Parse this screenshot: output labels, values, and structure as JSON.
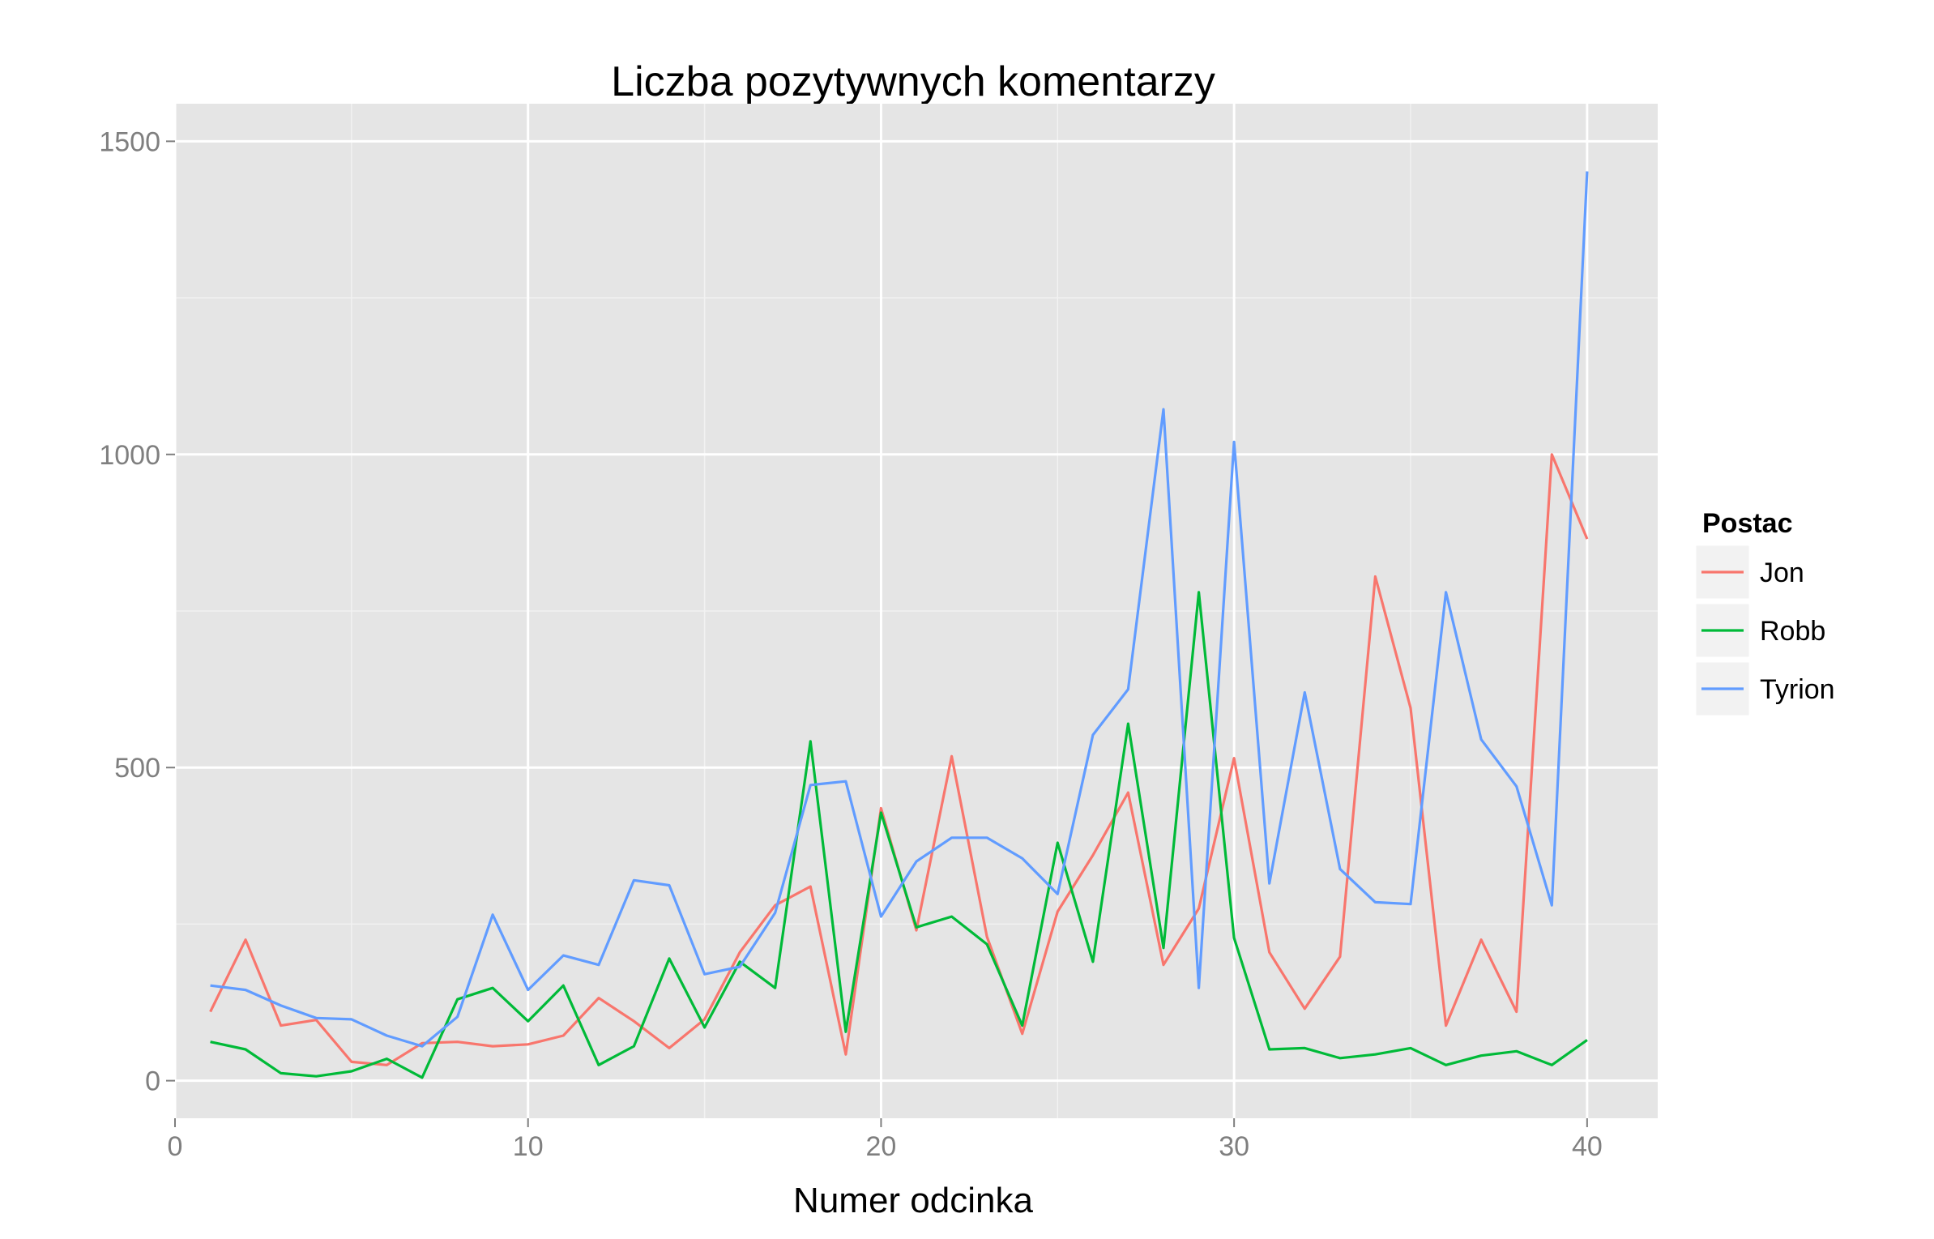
{
  "chart_data": {
    "type": "line",
    "title": "Liczba pozytywnych komentarzy",
    "xlabel": "Numer odcinka",
    "ylabel": "",
    "xlim": [
      0,
      42
    ],
    "ylim": [
      -60,
      1560
    ],
    "x_ticks": [
      0,
      10,
      20,
      30,
      40
    ],
    "y_ticks": [
      0,
      500,
      1000,
      1500
    ],
    "grid": true,
    "background": "#e5e5e5",
    "legend": {
      "title": "Postac",
      "position": "right"
    },
    "x": [
      1,
      2,
      3,
      4,
      5,
      6,
      7,
      8,
      9,
      10,
      11,
      12,
      13,
      14,
      15,
      16,
      17,
      18,
      19,
      20,
      21,
      22,
      23,
      24,
      25,
      26,
      27,
      28,
      29,
      30,
      31,
      32,
      33,
      34,
      35,
      36,
      37,
      38,
      39,
      40
    ],
    "series": [
      {
        "name": "Jon",
        "color": "#f8766d",
        "values": [
          110,
          225,
          88,
          97,
          30,
          25,
          60,
          62,
          55,
          58,
          72,
          132,
          95,
          52,
          98,
          205,
          280,
          310,
          42,
          435,
          240,
          518,
          230,
          75,
          270,
          360,
          460,
          185,
          275,
          515,
          205,
          115,
          198,
          805,
          595,
          88,
          225,
          110,
          1000,
          865
        ]
      },
      {
        "name": "Robb",
        "color": "#00ba38",
        "values": [
          62,
          50,
          12,
          7,
          15,
          35,
          5,
          130,
          148,
          95,
          152,
          25,
          55,
          195,
          85,
          190,
          148,
          542,
          78,
          428,
          245,
          262,
          218,
          88,
          380,
          190,
          570,
          212,
          780,
          228,
          50,
          52,
          36,
          42,
          52,
          25,
          40,
          47,
          25,
          65
        ]
      },
      {
        "name": "Tyrion",
        "color": "#619cff",
        "values": [
          152,
          145,
          120,
          100,
          98,
          72,
          55,
          102,
          265,
          145,
          200,
          185,
          320,
          312,
          170,
          182,
          268,
          472,
          478,
          262,
          350,
          388,
          388,
          355,
          298,
          552,
          625,
          1072,
          148,
          1020,
          315,
          620,
          338,
          285,
          282,
          780,
          545,
          470,
          280,
          1452
        ]
      }
    ]
  }
}
